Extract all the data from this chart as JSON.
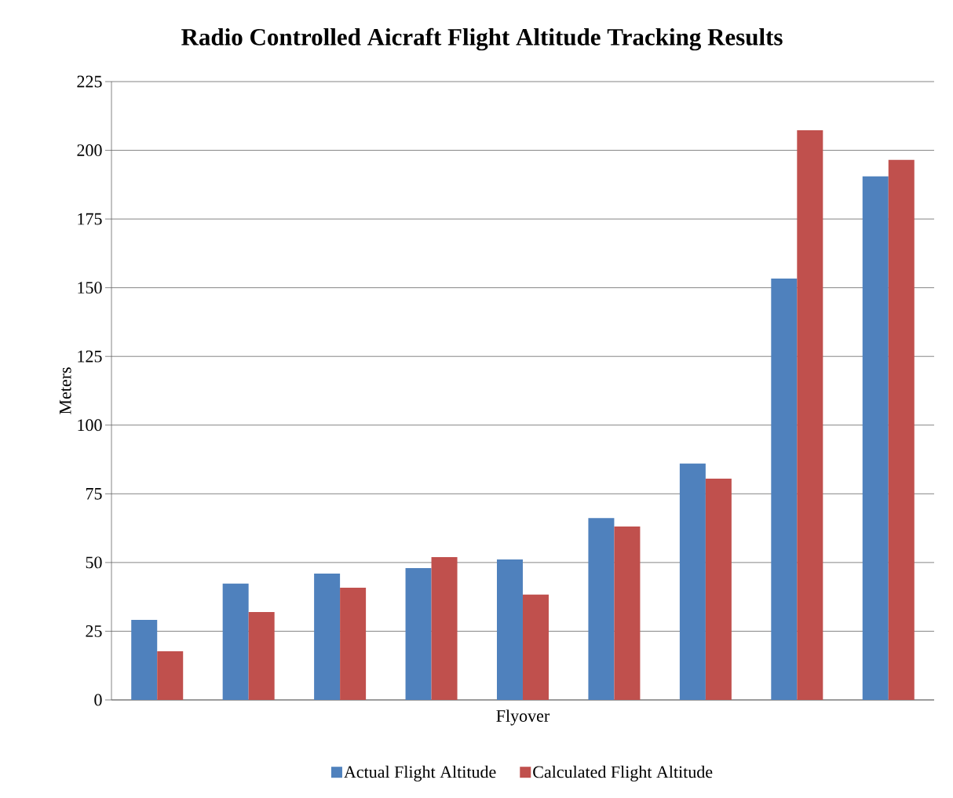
{
  "chart_data": {
    "type": "bar",
    "title": "Radio Controlled Aicraft Flight Altitude Tracking Results",
    "xlabel": "Flyover",
    "ylabel": "Meters",
    "categories": [
      null,
      null,
      null,
      null,
      null,
      null,
      null,
      null,
      null
    ],
    "series": [
      {
        "name": "Actual Flight Altitude",
        "color": "#4f81bd",
        "values": [
          29.1,
          42.3,
          46.0,
          48.0,
          51.1,
          66.2,
          86.0,
          153.3,
          190.5
        ]
      },
      {
        "name": "Calculated Flight Altitude",
        "color": "#c0504d",
        "values": [
          17.7,
          32.0,
          40.8,
          52.0,
          38.3,
          63.1,
          80.5,
          207.3,
          196.5
        ]
      }
    ],
    "ylim": [
      0,
      225
    ],
    "yticks": [
      0,
      25,
      50,
      75,
      100,
      125,
      150,
      175,
      200,
      225
    ],
    "grid": "y",
    "legend": "bottom"
  }
}
